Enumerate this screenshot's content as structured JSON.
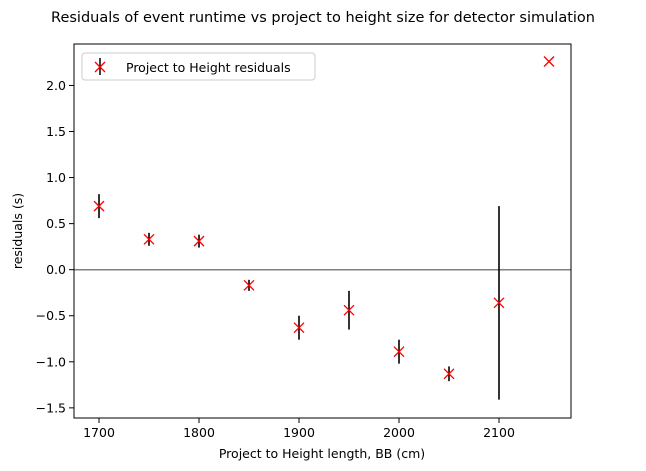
{
  "chart_data": {
    "type": "scatter",
    "title": "Residuals of event runtime vs project to height size for detector simulation",
    "xlabel": "Project to Height length, BB  (cm)",
    "ylabel": "residuals (s)",
    "xlim": [
      1675,
      2172
    ],
    "ylim": [
      -1.61,
      2.45
    ],
    "xticks": [
      1700,
      1800,
      1900,
      2000,
      2100
    ],
    "xtick_labels": [
      "1700",
      "1800",
      "1900",
      "2000",
      "2100"
    ],
    "yticks": [
      -1.5,
      -1.0,
      -0.5,
      0.0,
      0.5,
      1.0,
      1.5,
      2.0
    ],
    "ytick_labels": [
      "−1.5",
      "−1.0",
      "−0.5",
      "0.0",
      "0.5",
      "1.0",
      "1.5",
      "2.0"
    ],
    "reference_line": 0.0,
    "legend": {
      "placement": "top-left",
      "entries": [
        "Project to Height residuals"
      ]
    },
    "colors": {
      "marker": "#ff0000",
      "errorbar": "#000000",
      "zero_line": "#808080"
    },
    "series": [
      {
        "name": "Project to Height residuals",
        "points": [
          {
            "x": 1700,
            "y": 0.69,
            "err": 0.13
          },
          {
            "x": 1750,
            "y": 0.33,
            "err": 0.07
          },
          {
            "x": 1800,
            "y": 0.31,
            "err": 0.07
          },
          {
            "x": 1850,
            "y": -0.17,
            "err": 0.06
          },
          {
            "x": 1900,
            "y": -0.63,
            "err": 0.13
          },
          {
            "x": 1950,
            "y": -0.44,
            "err": 0.21
          },
          {
            "x": 2000,
            "y": -0.89,
            "err": 0.13
          },
          {
            "x": 2050,
            "y": -1.13,
            "err": 0.08
          },
          {
            "x": 2100,
            "y": -0.36,
            "err": 1.05
          },
          {
            "x": 2150,
            "y": 2.26,
            "err": 0
          }
        ]
      }
    ]
  }
}
